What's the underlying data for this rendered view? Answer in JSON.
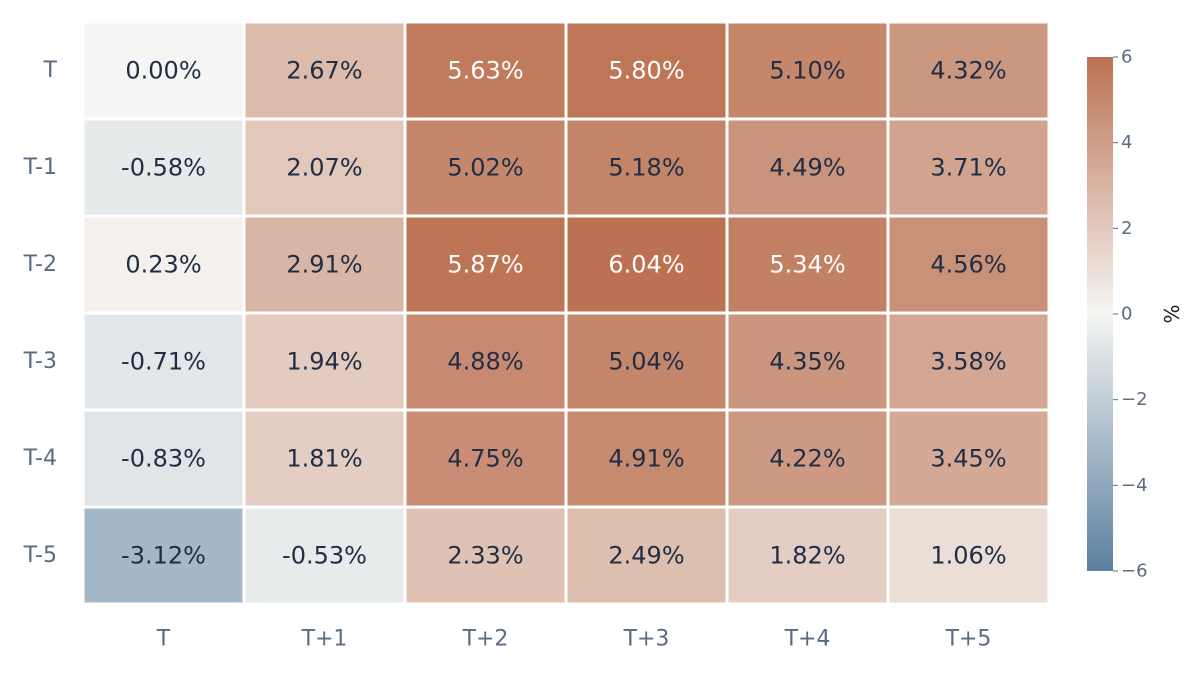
{
  "chart_data": {
    "type": "heatmap",
    "x_categories": [
      "T",
      "T+1",
      "T+2",
      "T+3",
      "T+4",
      "T+5"
    ],
    "y_categories": [
      "T",
      "T-1",
      "T-2",
      "T-3",
      "T-4",
      "T-5"
    ],
    "values": [
      [
        0.0,
        2.67,
        5.63,
        5.8,
        5.1,
        4.32
      ],
      [
        -0.58,
        2.07,
        5.02,
        5.18,
        4.49,
        3.71
      ],
      [
        0.23,
        2.91,
        5.87,
        6.04,
        5.34,
        4.56
      ],
      [
        -0.71,
        1.94,
        4.88,
        5.04,
        4.35,
        3.58
      ],
      [
        -0.83,
        1.81,
        4.75,
        4.91,
        4.22,
        3.45
      ],
      [
        -3.12,
        -0.53,
        2.33,
        2.49,
        1.82,
        1.06
      ]
    ],
    "cell_labels": [
      [
        "0.00%",
        "2.67%",
        "5.63%",
        "5.80%",
        "5.10%",
        "4.32%"
      ],
      [
        "-0.58%",
        "2.07%",
        "5.02%",
        "5.18%",
        "4.49%",
        "3.71%"
      ],
      [
        "0.23%",
        "2.91%",
        "5.87%",
        "6.04%",
        "5.34%",
        "4.56%"
      ],
      [
        "-0.71%",
        "1.94%",
        "4.88%",
        "5.04%",
        "4.35%",
        "3.58%"
      ],
      [
        "-0.83%",
        "1.81%",
        "4.75%",
        "4.91%",
        "4.22%",
        "3.45%"
      ],
      [
        "-3.12%",
        "-0.53%",
        "2.33%",
        "2.49%",
        "1.82%",
        "1.06%"
      ]
    ],
    "colorbar": {
      "title": "%",
      "range": [
        -6,
        6
      ],
      "ticks": [
        6,
        4,
        2,
        0,
        -2,
        -4,
        -6
      ],
      "tick_labels": [
        "6",
        "4",
        "2",
        "0",
        "−2",
        "−4",
        "−6"
      ],
      "colors": {
        "low": "#5b80a0",
        "mid": "#f5f5f3",
        "high": "#bc7252"
      }
    },
    "text_colors": {
      "dark": "#1f2d45",
      "light": "#ffffff"
    }
  }
}
